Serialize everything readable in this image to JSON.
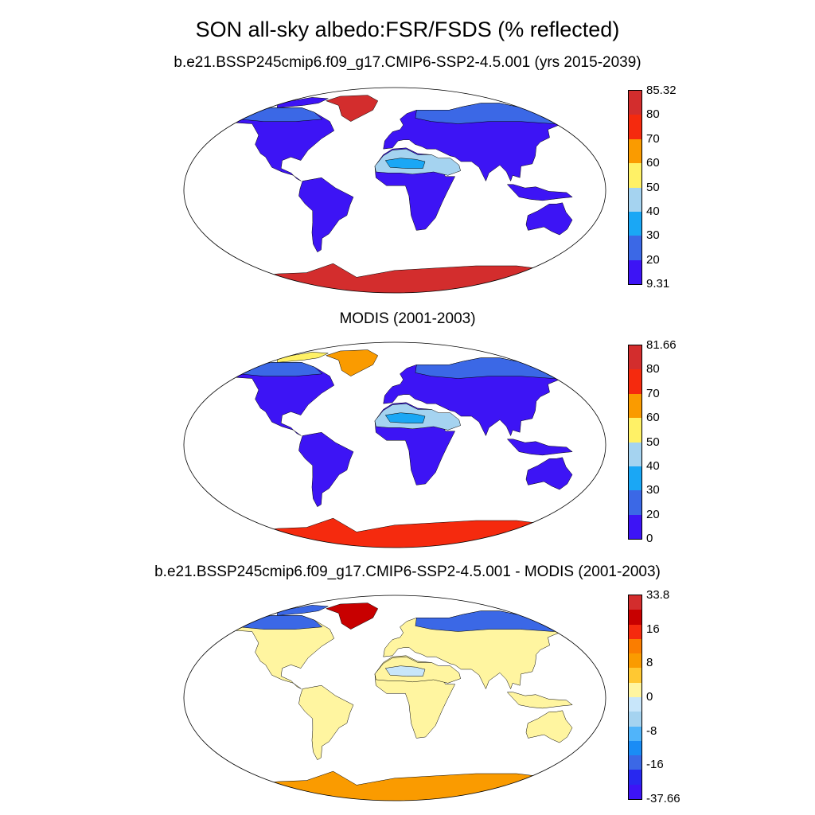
{
  "title": "SON all-sky albedo:FSR/FSDS (% reflected)",
  "panels": [
    {
      "id": "model",
      "title": "b.e21.BSSP245cmip6.f09_g17.CMIP6-SSP2-4.5.001 (yrs 2015-2039)",
      "colorbar": {
        "ticks": [
          "85.32",
          "80",
          "70",
          "60",
          "50",
          "40",
          "30",
          "20",
          "9.31"
        ],
        "colors": [
          "#d32d2d",
          "#f52a0e",
          "#fa9b00",
          "#fff166",
          "#a5d3f0",
          "#1aa7f5",
          "#3b68e6",
          "#3d14f5"
        ]
      },
      "region_colors": {
        "land_low": "#3d14f5",
        "boreal": "#3b68e6",
        "desert": "#a5d3f0",
        "desert_core": "#1aa7f5",
        "greenland": "#d32d2d",
        "antarctica": "#d32d2d",
        "arctic_islands": "#3d14f5"
      }
    },
    {
      "id": "obs",
      "title": "MODIS (2001-2003)",
      "colorbar": {
        "ticks": [
          "81.66",
          "80",
          "70",
          "60",
          "50",
          "40",
          "30",
          "20",
          "0"
        ],
        "colors": [
          "#d32d2d",
          "#f52a0e",
          "#fa9b00",
          "#fff166",
          "#a5d3f0",
          "#1aa7f5",
          "#3b68e6",
          "#3d14f5"
        ]
      },
      "region_colors": {
        "land_low": "#3d14f5",
        "boreal": "#3b68e6",
        "desert": "#a5d3f0",
        "desert_core": "#1aa7f5",
        "greenland": "#fa9b00",
        "antarctica": "#f52a0e",
        "arctic_islands": "#fff166"
      }
    },
    {
      "id": "diff",
      "title": "b.e21.BSSP245cmip6.f09_g17.CMIP6-SSP2-4.5.001 - MODIS (2001-2003)",
      "colorbar": {
        "ticks": [
          "33.8",
          "",
          "16",
          "",
          "8",
          "",
          "0",
          "",
          "-8",
          "",
          "-16",
          "",
          "-37.66"
        ],
        "colors": [
          "#d32d2d",
          "#c80000",
          "#f52a0e",
          "#fa7d00",
          "#fa9b00",
          "#ffc832",
          "#fff5a0",
          "#c8e6fa",
          "#a5d3f0",
          "#50b4fa",
          "#1a8cf5",
          "#3b68e6",
          "#2828f0",
          "#3d14f5"
        ]
      },
      "region_colors": {
        "land_low": "#fff5a0",
        "boreal": "#3b68e6",
        "desert": "#fff5a0",
        "desert_core": "#c8e6fa",
        "greenland": "#c80000",
        "antarctica": "#fa9b00",
        "arctic_islands": "#3b68e6"
      }
    }
  ]
}
